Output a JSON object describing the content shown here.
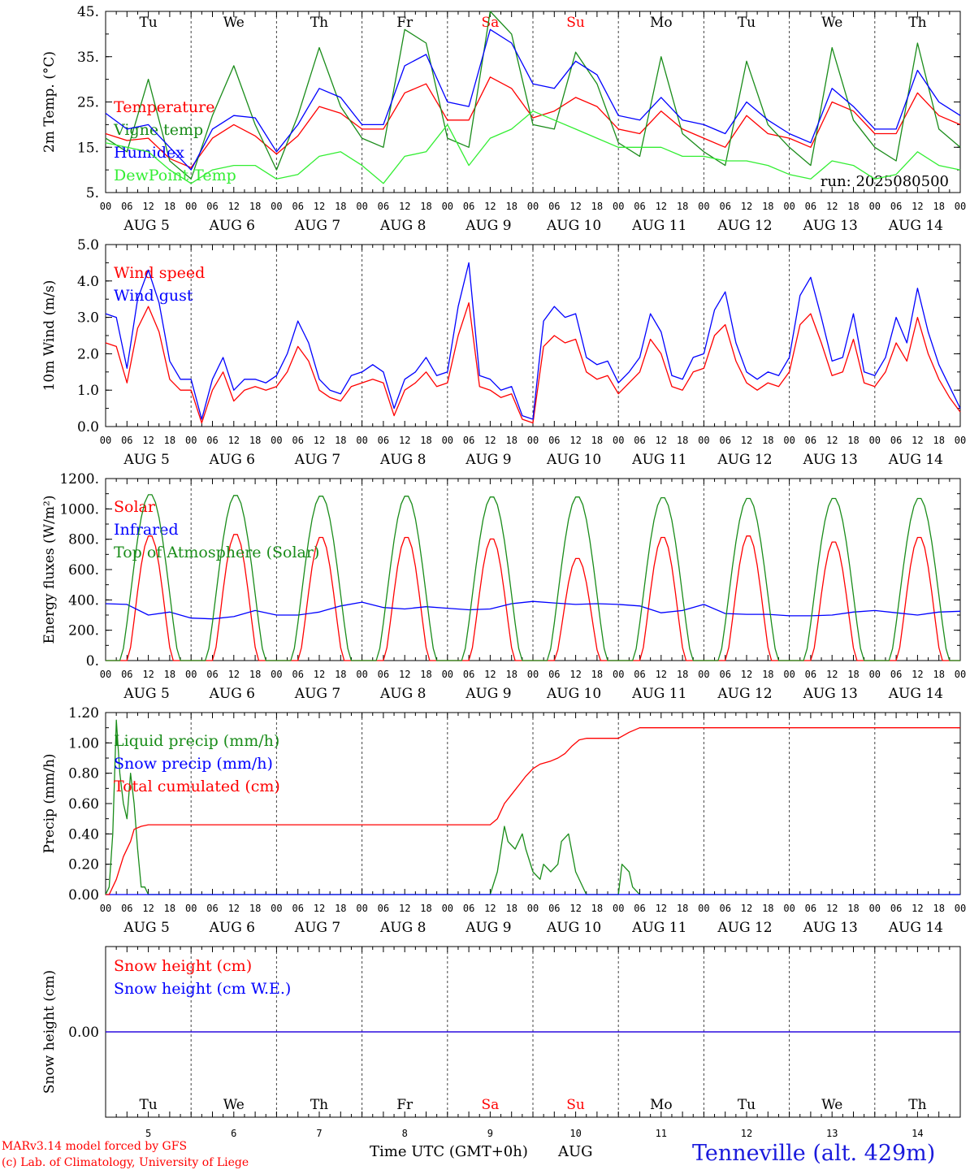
{
  "footer": {
    "model": "MARv3.14 model forced by GFS",
    "lab": "(c) Lab. of Climatology, University of Liege",
    "xtitle": "Time UTC (GMT+0h)",
    "month": "AUG",
    "station": "Tenneville (alt. 429m)"
  },
  "run": "run: 2025080500",
  "colors": {
    "red": "#ff0000",
    "green": "#1a8c1a",
    "blue": "#0000ff",
    "lime": "#33ee33",
    "weekend": "#ff0000"
  },
  "days": {
    "weekdays": [
      "Tu",
      "We",
      "Th",
      "Fr",
      "Sa",
      "Su",
      "Mo",
      "Tu",
      "We",
      "Th"
    ],
    "weekend": [
      false,
      false,
      false,
      false,
      true,
      true,
      false,
      false,
      false,
      false
    ],
    "date_labels": [
      "AUG  5",
      "AUG  6",
      "AUG  7",
      "AUG  8",
      "AUG  9",
      "AUG 10",
      "AUG 11",
      "AUG 12",
      "AUG 13",
      "AUG 14"
    ],
    "day_numbers": [
      "5",
      "6",
      "7",
      "8",
      "9",
      "10",
      "11",
      "12",
      "13",
      "14"
    ],
    "hour_ticks": [
      "00",
      "06",
      "12",
      "18"
    ],
    "final_tick": "00"
  },
  "chart_data": [
    {
      "type": "line",
      "ylabel": "2m Temp. (°C)",
      "ylim": [
        5,
        45
      ],
      "yticks": [
        "45.",
        "35.",
        "25.",
        "15.",
        "5."
      ],
      "ytick_values": [
        45,
        35,
        25,
        15,
        5
      ],
      "x_unit": "hours since AUG 5 00 UTC",
      "series": [
        {
          "name": "Temperature",
          "color": "red",
          "x": [
            0,
            6,
            12,
            18,
            24,
            30,
            36,
            42,
            48,
            54,
            60,
            66,
            72,
            78,
            84,
            90,
            96,
            102,
            108,
            114,
            120,
            126,
            132,
            138,
            144,
            150,
            156,
            162,
            168,
            174,
            180,
            186,
            192,
            198,
            204,
            210,
            216,
            222,
            228,
            234,
            240
          ],
          "y": [
            18,
            16.5,
            17,
            12.5,
            10.5,
            17,
            20,
            17.5,
            13.5,
            17.5,
            24,
            22.5,
            19,
            19,
            27,
            29,
            21,
            21,
            30.5,
            28,
            21.5,
            23,
            26,
            24,
            19,
            18,
            23,
            19,
            17,
            15,
            22,
            18,
            17,
            15,
            25,
            23,
            18,
            18,
            27,
            22,
            20
          ]
        },
        {
          "name": "Vigne temp",
          "color": "green",
          "x": [
            0,
            6,
            12,
            18,
            24,
            30,
            36,
            42,
            48,
            54,
            60,
            66,
            72,
            78,
            84,
            90,
            96,
            102,
            108,
            114,
            120,
            126,
            132,
            138,
            144,
            150,
            156,
            162,
            168,
            174,
            180,
            186,
            192,
            198,
            204,
            210,
            216,
            222,
            228,
            234,
            240
          ],
          "y": [
            17,
            14,
            30,
            12,
            8,
            22,
            33,
            20,
            10,
            22,
            37,
            24,
            17,
            15,
            41,
            38,
            17,
            15,
            45,
            40,
            20,
            19,
            36,
            29,
            16,
            13,
            35,
            18,
            14,
            11,
            34,
            20,
            15,
            11,
            37,
            21,
            15,
            12,
            38,
            19,
            15
          ]
        },
        {
          "name": "Humidex",
          "color": "blue",
          "x": [
            0,
            6,
            12,
            18,
            24,
            30,
            36,
            42,
            48,
            54,
            60,
            66,
            72,
            78,
            84,
            90,
            96,
            102,
            108,
            114,
            120,
            126,
            132,
            138,
            144,
            150,
            156,
            162,
            168,
            174,
            180,
            186,
            192,
            198,
            204,
            210,
            216,
            222,
            228,
            234,
            240
          ],
          "y": [
            22.5,
            19,
            20,
            15,
            10,
            19,
            22,
            21.5,
            14,
            20,
            28,
            26,
            20,
            20,
            33,
            35.5,
            25,
            24,
            41,
            38,
            29,
            28,
            34,
            31,
            22,
            21,
            26,
            21,
            20,
            18,
            25,
            21,
            18,
            16,
            28,
            24,
            19,
            19,
            32,
            25,
            22
          ]
        },
        {
          "name": "DewPoint Temp",
          "color": "lime",
          "x": [
            0,
            6,
            12,
            18,
            24,
            30,
            36,
            42,
            48,
            54,
            60,
            66,
            72,
            78,
            84,
            90,
            96,
            102,
            108,
            114,
            120,
            126,
            132,
            138,
            144,
            150,
            156,
            162,
            168,
            174,
            180,
            186,
            192,
            198,
            204,
            210,
            216,
            222,
            228,
            234,
            240
          ],
          "y": [
            16,
            15,
            14,
            10,
            7,
            10,
            11,
            11,
            8,
            9,
            13,
            14,
            11,
            7,
            13,
            14,
            20,
            11,
            17,
            19,
            23,
            21,
            19,
            17,
            15,
            15,
            15,
            13,
            13,
            12,
            12,
            11,
            9,
            8,
            12,
            11,
            8,
            9,
            14,
            11,
            10
          ]
        }
      ]
    },
    {
      "type": "line",
      "ylabel": "10m Wind (m/s)",
      "ylim": [
        0,
        5
      ],
      "yticks": [
        "5.0",
        "4.0",
        "3.0",
        "2.0",
        "1.0",
        "0.0"
      ],
      "ytick_values": [
        5,
        4,
        3,
        2,
        1,
        0
      ],
      "x_unit": "hours since AUG 5 00 UTC",
      "series": [
        {
          "name": "Wind speed",
          "color": "red",
          "x": [
            0,
            3,
            6,
            9,
            12,
            15,
            18,
            21,
            24,
            27,
            30,
            33,
            36,
            39,
            42,
            45,
            48,
            51,
            54,
            57,
            60,
            63,
            66,
            69,
            72,
            75,
            78,
            81,
            84,
            87,
            90,
            93,
            96,
            99,
            102,
            105,
            108,
            111,
            114,
            117,
            120,
            123,
            126,
            129,
            132,
            135,
            138,
            141,
            144,
            147,
            150,
            153,
            156,
            159,
            162,
            165,
            168,
            171,
            174,
            177,
            180,
            183,
            186,
            189,
            192,
            195,
            198,
            201,
            204,
            207,
            210,
            213,
            216,
            219,
            222,
            225,
            228,
            231,
            234,
            237,
            240
          ],
          "y": [
            2.3,
            2.2,
            1.2,
            2.7,
            3.3,
            2.6,
            1.3,
            1.0,
            1.0,
            0.1,
            1.0,
            1.5,
            0.7,
            1.0,
            1.1,
            1.0,
            1.1,
            1.5,
            2.2,
            1.8,
            1.0,
            0.8,
            0.7,
            1.1,
            1.2,
            1.3,
            1.2,
            0.3,
            1.0,
            1.2,
            1.5,
            1.1,
            1.2,
            2.5,
            3.4,
            1.1,
            1.0,
            0.8,
            0.9,
            0.2,
            0.1,
            2.2,
            2.5,
            2.3,
            2.4,
            1.5,
            1.3,
            1.4,
            0.9,
            1.2,
            1.5,
            2.4,
            2.0,
            1.1,
            1.0,
            1.5,
            1.6,
            2.5,
            2.8,
            1.8,
            1.2,
            1.0,
            1.2,
            1.1,
            1.5,
            2.8,
            3.1,
            2.3,
            1.4,
            1.5,
            2.4,
            1.2,
            1.1,
            1.5,
            2.3,
            1.8,
            3.0,
            2.0,
            1.3,
            0.8,
            0.4
          ]
        },
        {
          "name": "Wind gust",
          "color": "blue",
          "x": [
            0,
            3,
            6,
            9,
            12,
            15,
            18,
            21,
            24,
            27,
            30,
            33,
            36,
            39,
            42,
            45,
            48,
            51,
            54,
            57,
            60,
            63,
            66,
            69,
            72,
            75,
            78,
            81,
            84,
            87,
            90,
            93,
            96,
            99,
            102,
            105,
            108,
            111,
            114,
            117,
            120,
            123,
            126,
            129,
            132,
            135,
            138,
            141,
            144,
            147,
            150,
            153,
            156,
            159,
            162,
            165,
            168,
            171,
            174,
            177,
            180,
            183,
            186,
            189,
            192,
            195,
            198,
            201,
            204,
            207,
            210,
            213,
            216,
            219,
            222,
            225,
            228,
            231,
            234,
            237,
            240
          ],
          "y": [
            3.1,
            3.0,
            1.6,
            3.5,
            4.3,
            3.4,
            1.8,
            1.3,
            1.3,
            0.2,
            1.3,
            1.9,
            1.0,
            1.3,
            1.3,
            1.2,
            1.4,
            2.0,
            2.9,
            2.3,
            1.3,
            1.0,
            0.9,
            1.4,
            1.5,
            1.7,
            1.5,
            0.5,
            1.3,
            1.5,
            1.9,
            1.4,
            1.5,
            3.3,
            4.5,
            1.4,
            1.3,
            1.0,
            1.1,
            0.3,
            0.2,
            2.9,
            3.3,
            3.0,
            3.1,
            1.9,
            1.7,
            1.8,
            1.2,
            1.5,
            1.9,
            3.1,
            2.6,
            1.4,
            1.3,
            1.9,
            2.0,
            3.2,
            3.7,
            2.3,
            1.5,
            1.3,
            1.5,
            1.4,
            1.9,
            3.6,
            4.1,
            3.0,
            1.8,
            1.9,
            3.1,
            1.5,
            1.4,
            1.9,
            3.0,
            2.3,
            3.8,
            2.6,
            1.7,
            1.1,
            0.5
          ]
        }
      ]
    },
    {
      "type": "line",
      "ylabel": "Energy fluxes (W/m²)",
      "ylim": [
        0,
        1200
      ],
      "yticks": [
        "1200.",
        "1000.",
        "800.",
        "600.",
        "400.",
        "200.",
        "0."
      ],
      "ytick_values": [
        1200,
        1000,
        800,
        600,
        400,
        200,
        0
      ],
      "x_unit": "hours since AUG 5 00 UTC",
      "series": [
        {
          "name": "Solar",
          "color": "red",
          "peak_per_day": [
            830,
            840,
            820,
            820,
            810,
            680,
            820,
            830,
            790,
            820
          ]
        },
        {
          "name": "Infrared",
          "color": "blue",
          "x": [
            0,
            6,
            12,
            18,
            24,
            30,
            36,
            42,
            48,
            54,
            60,
            66,
            72,
            78,
            84,
            90,
            96,
            102,
            108,
            114,
            120,
            126,
            132,
            138,
            144,
            150,
            156,
            162,
            168,
            174,
            180,
            186,
            192,
            198,
            204,
            210,
            216,
            222,
            228,
            234,
            240
          ],
          "y": [
            375,
            370,
            300,
            320,
            280,
            275,
            290,
            330,
            300,
            300,
            320,
            360,
            385,
            350,
            340,
            355,
            345,
            335,
            340,
            375,
            390,
            380,
            370,
            375,
            370,
            360,
            315,
            330,
            370,
            310,
            305,
            305,
            295,
            295,
            300,
            320,
            330,
            315,
            300,
            320,
            325
          ]
        },
        {
          "name": "Top of Atmosphere (Solar)",
          "color": "green",
          "peak_per_day": [
            1100,
            1095,
            1090,
            1090,
            1085,
            1085,
            1080,
            1075,
            1075,
            1075
          ]
        }
      ]
    },
    {
      "type": "line",
      "ylabel": "Precip (mm/h)",
      "ylim": [
        0,
        1.2
      ],
      "yticks": [
        "1.20",
        "1.00",
        "0.80",
        "0.60",
        "0.40",
        "0.20",
        "0.00"
      ],
      "ytick_values": [
        1.2,
        1.0,
        0.8,
        0.6,
        0.4,
        0.2,
        0.0
      ],
      "x_unit": "hours since AUG 5 00 UTC",
      "series": [
        {
          "name": "Liquid precip (mm/h)",
          "color": "green",
          "x": [
            0,
            1,
            2,
            3,
            4,
            5,
            6,
            7,
            8,
            9,
            10,
            11,
            12,
            13,
            14,
            108,
            110,
            112,
            113,
            115,
            117,
            118,
            120,
            122,
            123,
            125,
            127,
            128,
            130,
            132,
            135,
            138,
            144,
            145,
            147,
            148,
            150,
            240
          ],
          "y": [
            0,
            0.05,
            0.4,
            1.15,
            0.8,
            0.6,
            0.5,
            0.8,
            0.6,
            0.3,
            0.05,
            0.05,
            0,
            0,
            0,
            0,
            0.15,
            0.45,
            0.35,
            0.3,
            0.4,
            0.3,
            0.15,
            0.1,
            0.2,
            0.15,
            0.2,
            0.35,
            0.4,
            0.15,
            0,
            0,
            0,
            0.2,
            0.15,
            0.05,
            0,
            0
          ]
        },
        {
          "name": "Snow precip (mm/h)",
          "color": "blue",
          "x": [
            0,
            240
          ],
          "y": [
            0,
            0
          ]
        },
        {
          "name": "Total cumulated (cm)",
          "color": "red",
          "x": [
            0,
            1,
            3,
            5,
            7,
            8,
            10,
            12,
            108,
            110,
            112,
            114,
            116,
            118,
            120,
            122,
            125,
            127,
            129,
            131,
            133,
            135,
            138,
            144,
            147,
            150,
            240
          ],
          "y": [
            0,
            0,
            0.1,
            0.25,
            0.35,
            0.43,
            0.45,
            0.46,
            0.46,
            0.5,
            0.6,
            0.66,
            0.72,
            0.78,
            0.83,
            0.86,
            0.88,
            0.9,
            0.93,
            0.98,
            1.02,
            1.03,
            1.03,
            1.03,
            1.07,
            1.1,
            1.1
          ]
        }
      ]
    },
    {
      "type": "line",
      "ylabel": "Snow height (cm)",
      "ylim": [
        -1,
        1
      ],
      "yticks": [
        "0.00"
      ],
      "ytick_values": [
        0
      ],
      "x_unit": "hours since AUG 5 00 UTC",
      "series": [
        {
          "name": "Snow height (cm)",
          "color": "red",
          "x": [
            0,
            240
          ],
          "y": [
            0,
            0
          ]
        },
        {
          "name": "Snow height (cm W.E.)",
          "color": "blue",
          "x": [
            0,
            240
          ],
          "y": [
            0,
            0
          ]
        }
      ]
    }
  ]
}
